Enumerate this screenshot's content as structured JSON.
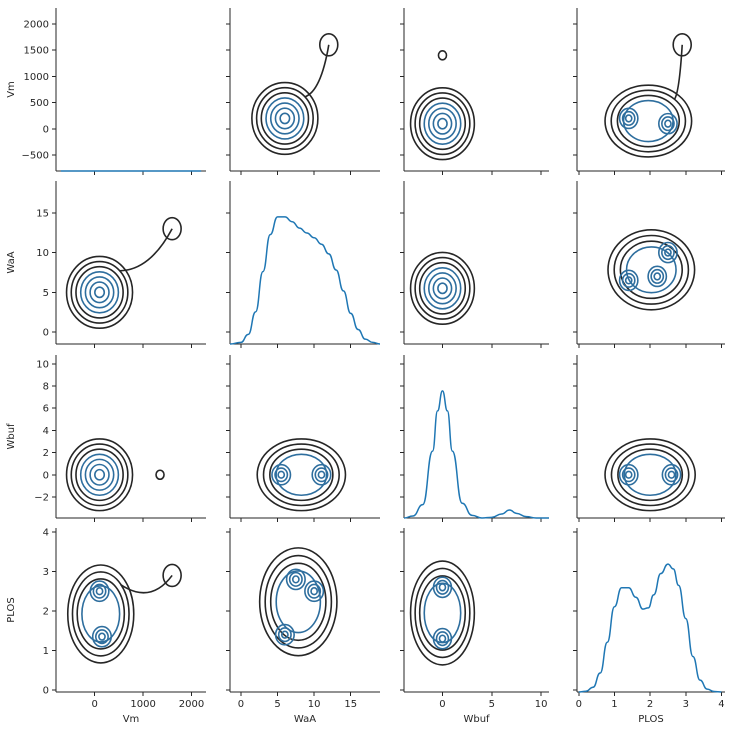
{
  "chart_data": {
    "type": "pairplot",
    "variables": [
      "Vm",
      "WaA",
      "Wbuf",
      "PLOS"
    ],
    "axes": {
      "Vm": {
        "label": "Vm",
        "range": [
          -800,
          2300
        ],
        "ticks": [
          0,
          1000,
          2000
        ],
        "ytick_values": [
          -500,
          0,
          500,
          1000,
          1500,
          2000
        ]
      },
      "WaA": {
        "label": "WaA",
        "range": [
          -1.5,
          19
        ],
        "ticks": [
          0,
          5,
          10,
          15
        ],
        "ytick_values": [
          0,
          5,
          10,
          15
        ]
      },
      "Wbuf": {
        "label": "Wbuf",
        "range": [
          -3.9,
          10.8
        ],
        "ticks": [
          0,
          5,
          10
        ],
        "ytick_values": [
          -2,
          0,
          2,
          4,
          6,
          8,
          10
        ]
      },
      "PLOS": {
        "label": "PLOS",
        "range": [
          -0.05,
          4.1
        ],
        "ticks": [
          0,
          1,
          2,
          3,
          4
        ],
        "ytick_values": [
          0,
          1,
          2,
          3,
          4
        ]
      }
    },
    "diagonal_kde": [
      {
        "variable": "Vm",
        "kind": "kde",
        "x": [
          -700,
          2200
        ],
        "y": [
          0,
          0
        ]
      },
      {
        "variable": "WaA",
        "kind": "kde",
        "x": [
          -1.5,
          0,
          1,
          2,
          3,
          4,
          5,
          6,
          7,
          8,
          9,
          10,
          11,
          12,
          13,
          14,
          15,
          16,
          17,
          18,
          19
        ],
        "y": [
          0.0,
          0.001,
          0.006,
          0.02,
          0.045,
          0.068,
          0.079,
          0.079,
          0.076,
          0.072,
          0.069,
          0.066,
          0.062,
          0.056,
          0.046,
          0.033,
          0.019,
          0.009,
          0.003,
          0.001,
          0.0
        ]
      },
      {
        "variable": "Wbuf",
        "kind": "kde",
        "x": [
          -3.9,
          -3,
          -2,
          -1,
          -0.5,
          0,
          0.5,
          1,
          2,
          3,
          4,
          5,
          6,
          6.8,
          7.5,
          8.5,
          9.5,
          10.8
        ],
        "y": [
          0.0,
          0.003,
          0.02,
          0.1,
          0.16,
          0.19,
          0.16,
          0.1,
          0.022,
          0.004,
          0.0,
          0.001,
          0.006,
          0.012,
          0.007,
          0.002,
          0.0,
          0.0
        ]
      },
      {
        "variable": "PLOS",
        "kind": "kde",
        "x": [
          0,
          0.2,
          0.4,
          0.6,
          0.8,
          1.0,
          1.2,
          1.4,
          1.6,
          1.8,
          1.95,
          2.1,
          2.3,
          2.5,
          2.65,
          2.8,
          3.0,
          3.2,
          3.4,
          3.6,
          3.8,
          4.0
        ],
        "y": [
          0.0,
          0.003,
          0.02,
          0.08,
          0.21,
          0.36,
          0.44,
          0.44,
          0.4,
          0.35,
          0.355,
          0.41,
          0.5,
          0.54,
          0.52,
          0.45,
          0.31,
          0.15,
          0.05,
          0.012,
          0.002,
          0.0
        ]
      }
    ],
    "bivariate_kde": [
      {
        "x": "WaA",
        "y": "Vm",
        "peaks": [
          {
            "x": 6,
            "y": 200
          }
        ],
        "tail_toward": {
          "x": 12,
          "y": 1600
        }
      },
      {
        "x": "Wbuf",
        "y": "Vm",
        "peaks": [
          {
            "x": 0,
            "y": 100
          }
        ],
        "extra_island": {
          "x": 0,
          "y": 1400
        }
      },
      {
        "x": "PLOS",
        "y": "Vm",
        "peaks": [
          {
            "x": 1.4,
            "y": 200
          },
          {
            "x": 2.5,
            "y": 100
          }
        ],
        "tail_toward": {
          "x": 2.9,
          "y": 1600
        }
      },
      {
        "x": "Vm",
        "y": "WaA",
        "peaks": [
          {
            "x": 100,
            "y": 5
          }
        ],
        "tail_toward": {
          "x": 1600,
          "y": 13
        }
      },
      {
        "x": "Wbuf",
        "y": "WaA",
        "peaks": [
          {
            "x": 0,
            "y": 5.5
          }
        ]
      },
      {
        "x": "PLOS",
        "y": "WaA",
        "peaks": [
          {
            "x": 1.4,
            "y": 6.5
          },
          {
            "x": 2.5,
            "y": 10
          },
          {
            "x": 2.2,
            "y": 7
          }
        ]
      },
      {
        "x": "Vm",
        "y": "Wbuf",
        "peaks": [
          {
            "x": 100,
            "y": 0
          }
        ],
        "extra_island": {
          "x": 1350,
          "y": 0
        }
      },
      {
        "x": "WaA",
        "y": "Wbuf",
        "peaks": [
          {
            "x": 5.5,
            "y": 0
          },
          {
            "x": 11,
            "y": 0
          }
        ]
      },
      {
        "x": "PLOS",
        "y": "Wbuf",
        "peaks": [
          {
            "x": 1.4,
            "y": 0
          },
          {
            "x": 2.6,
            "y": 0
          }
        ]
      },
      {
        "x": "Vm",
        "y": "PLOS",
        "peaks": [
          {
            "x": 150,
            "y": 1.35
          },
          {
            "x": 100,
            "y": 2.5
          }
        ],
        "tail_toward": {
          "x": 1600,
          "y": 2.9
        }
      },
      {
        "x": "WaA",
        "y": "PLOS",
        "peaks": [
          {
            "x": 6,
            "y": 1.4
          },
          {
            "x": 10,
            "y": 2.5
          },
          {
            "x": 7.5,
            "y": 2.8
          }
        ]
      },
      {
        "x": "Wbuf",
        "y": "PLOS",
        "peaks": [
          {
            "x": 0,
            "y": 1.3
          },
          {
            "x": 0,
            "y": 2.6
          }
        ]
      }
    ],
    "grid": false,
    "legend": "none",
    "colors": {
      "kde_line": "#1f77b4",
      "contour_dark": "#262626",
      "contour_light": "#2e6e9e"
    }
  }
}
